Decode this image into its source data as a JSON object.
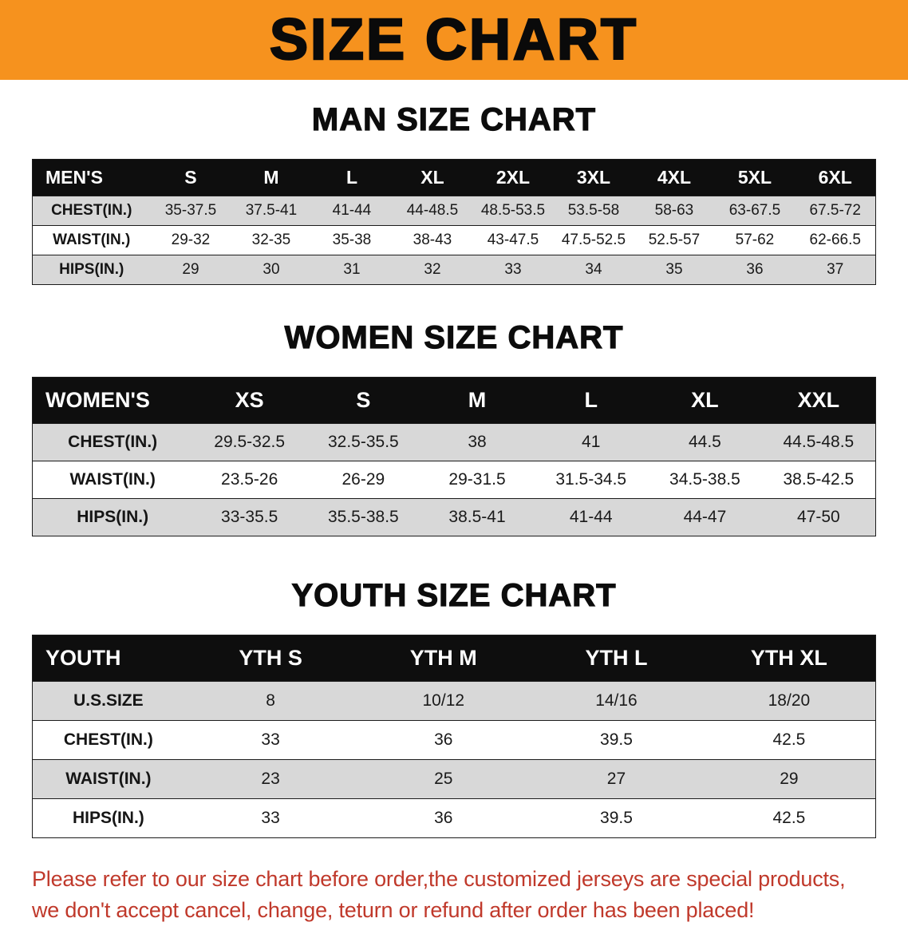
{
  "banner": {
    "title": "SIZE CHART"
  },
  "colors": {
    "banner_orange": "#F6921E",
    "table_header_black": "#0E0E0E",
    "row_stripe_gray": "#D8D8D8",
    "note_red": "#C0392B"
  },
  "sections": [
    {
      "id": "men",
      "heading": "MAN SIZE CHART",
      "table": {
        "header": [
          "MEN'S",
          "S",
          "M",
          "L",
          "XL",
          "2XL",
          "3XL",
          "4XL",
          "5XL",
          "6XL"
        ],
        "rows": [
          [
            "CHEST(IN.)",
            "35-37.5",
            "37.5-41",
            "41-44",
            "44-48.5",
            "48.5-53.5",
            "53.5-58",
            "58-63",
            "63-67.5",
            "67.5-72"
          ],
          [
            "WAIST(IN.)",
            "29-32",
            "32-35",
            "35-38",
            "38-43",
            "43-47.5",
            "47.5-52.5",
            "52.5-57",
            "57-62",
            "62-66.5"
          ],
          [
            "HIPS(IN.)",
            "29",
            "30",
            "31",
            "32",
            "33",
            "34",
            "35",
            "36",
            "37"
          ]
        ]
      }
    },
    {
      "id": "women",
      "heading": "WOMEN SIZE CHART",
      "table": {
        "header": [
          "WOMEN'S",
          "XS",
          "S",
          "M",
          "L",
          "XL",
          "XXL"
        ],
        "rows": [
          [
            "CHEST(IN.)",
            "29.5-32.5",
            "32.5-35.5",
            "38",
            "41",
            "44.5",
            "44.5-48.5"
          ],
          [
            "WAIST(IN.)",
            "23.5-26",
            "26-29",
            "29-31.5",
            "31.5-34.5",
            "34.5-38.5",
            "38.5-42.5"
          ],
          [
            "HIPS(IN.)",
            "33-35.5",
            "35.5-38.5",
            "38.5-41",
            "41-44",
            "44-47",
            "47-50"
          ]
        ]
      }
    },
    {
      "id": "youth",
      "heading": "YOUTH SIZE CHART",
      "table": {
        "header": [
          "YOUTH",
          "YTH S",
          "YTH M",
          "YTH L",
          "YTH XL"
        ],
        "rows": [
          [
            "U.S.SIZE",
            "8",
            "10/12",
            "14/16",
            "18/20"
          ],
          [
            "CHEST(IN.)",
            "33",
            "36",
            "39.5",
            "42.5"
          ],
          [
            "WAIST(IN.)",
            "23",
            "25",
            "27",
            "29"
          ],
          [
            "HIPS(IN.)",
            "33",
            "36",
            "39.5",
            "42.5"
          ]
        ]
      }
    }
  ],
  "note": {
    "lines": [
      "Please refer to our size chart before order,the customized jerseys are special products,",
      "we don't accept cancel, change, teturn or refund after order has been placed!"
    ]
  }
}
